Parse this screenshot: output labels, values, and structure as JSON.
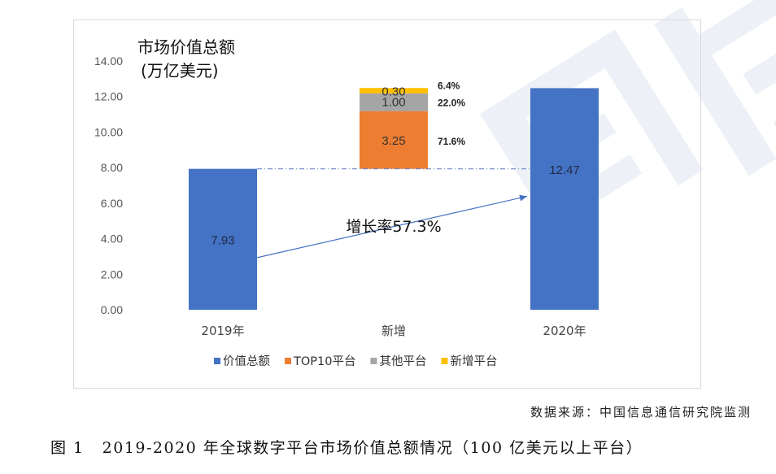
{
  "chart_data": {
    "type": "bar",
    "title": "市场价值总额",
    "unit": "(万亿美元)",
    "categories": [
      "2019年",
      "新增",
      "2020年"
    ],
    "ylim": [
      0,
      14
    ],
    "y_ticks": [
      "0.00",
      "2.00",
      "4.00",
      "6.00",
      "8.00",
      "10.00",
      "12.00",
      "14.00"
    ],
    "grid": false,
    "legend_position": "bottom",
    "series": [
      {
        "name": "价值总额",
        "color": "#4472C4",
        "values": [
          7.93,
          null,
          12.47
        ]
      },
      {
        "name": "TOP10平台",
        "color": "#ED7D31",
        "values": [
          null,
          3.25,
          null
        ]
      },
      {
        "name": "其他平台",
        "color": "#A5A5A5",
        "values": [
          null,
          1.0,
          null
        ]
      },
      {
        "name": "新增平台",
        "color": "#FFC000",
        "values": [
          null,
          0.3,
          null
        ]
      }
    ],
    "increment_base": 7.93,
    "data_labels": {
      "bar_2019": "7.93",
      "bar_2020": "12.47",
      "top10": "3.25",
      "other": "1.00",
      "new": "0.30"
    },
    "share_labels": {
      "top10": "71.6%",
      "other": "22.0%",
      "new": "6.4%"
    },
    "growth_annotation": "增长率57.3%"
  },
  "source_note": "数据来源：中国信息通信研究院监测",
  "caption": {
    "number": "图 1",
    "text": "2019-2020 年全球数字平台市场价值总额情况（100 亿美元以上平台）"
  },
  "colors": {
    "watermark": "#dfe6f2",
    "frame": "#d9d9d9",
    "arrow": "#4472C4"
  }
}
